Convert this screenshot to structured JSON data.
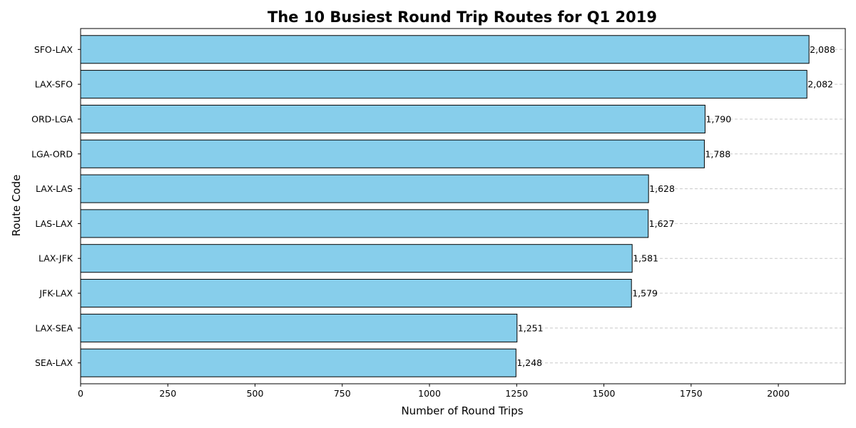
{
  "chart_data": {
    "type": "bar",
    "orientation": "horizontal",
    "title": "The 10 Busiest Round Trip Routes for Q1 2019",
    "xlabel": "Number of Round Trips",
    "ylabel": "Route Code",
    "categories": [
      "SFO-LAX",
      "LAX-SFO",
      "ORD-LGA",
      "LGA-ORD",
      "LAX-LAS",
      "LAS-LAX",
      "LAX-JFK",
      "JFK-LAX",
      "LAX-SEA",
      "SEA-LAX"
    ],
    "values": [
      2088,
      2082,
      1790,
      1788,
      1628,
      1627,
      1581,
      1579,
      1251,
      1248
    ],
    "value_labels": [
      "2,088",
      "2,082",
      "1,790",
      "1,788",
      "1,628",
      "1,627",
      "1,581",
      "1,579",
      "1,251",
      "1,248"
    ],
    "xlim": [
      0,
      2192
    ],
    "xticks": [
      0,
      250,
      500,
      750,
      1000,
      1250,
      1500,
      1750,
      2000
    ],
    "grid": "x-dashed",
    "bar_color": "#87CEEB",
    "bar_edge_color": "#000000",
    "grid_color": "#c8c8c8"
  }
}
